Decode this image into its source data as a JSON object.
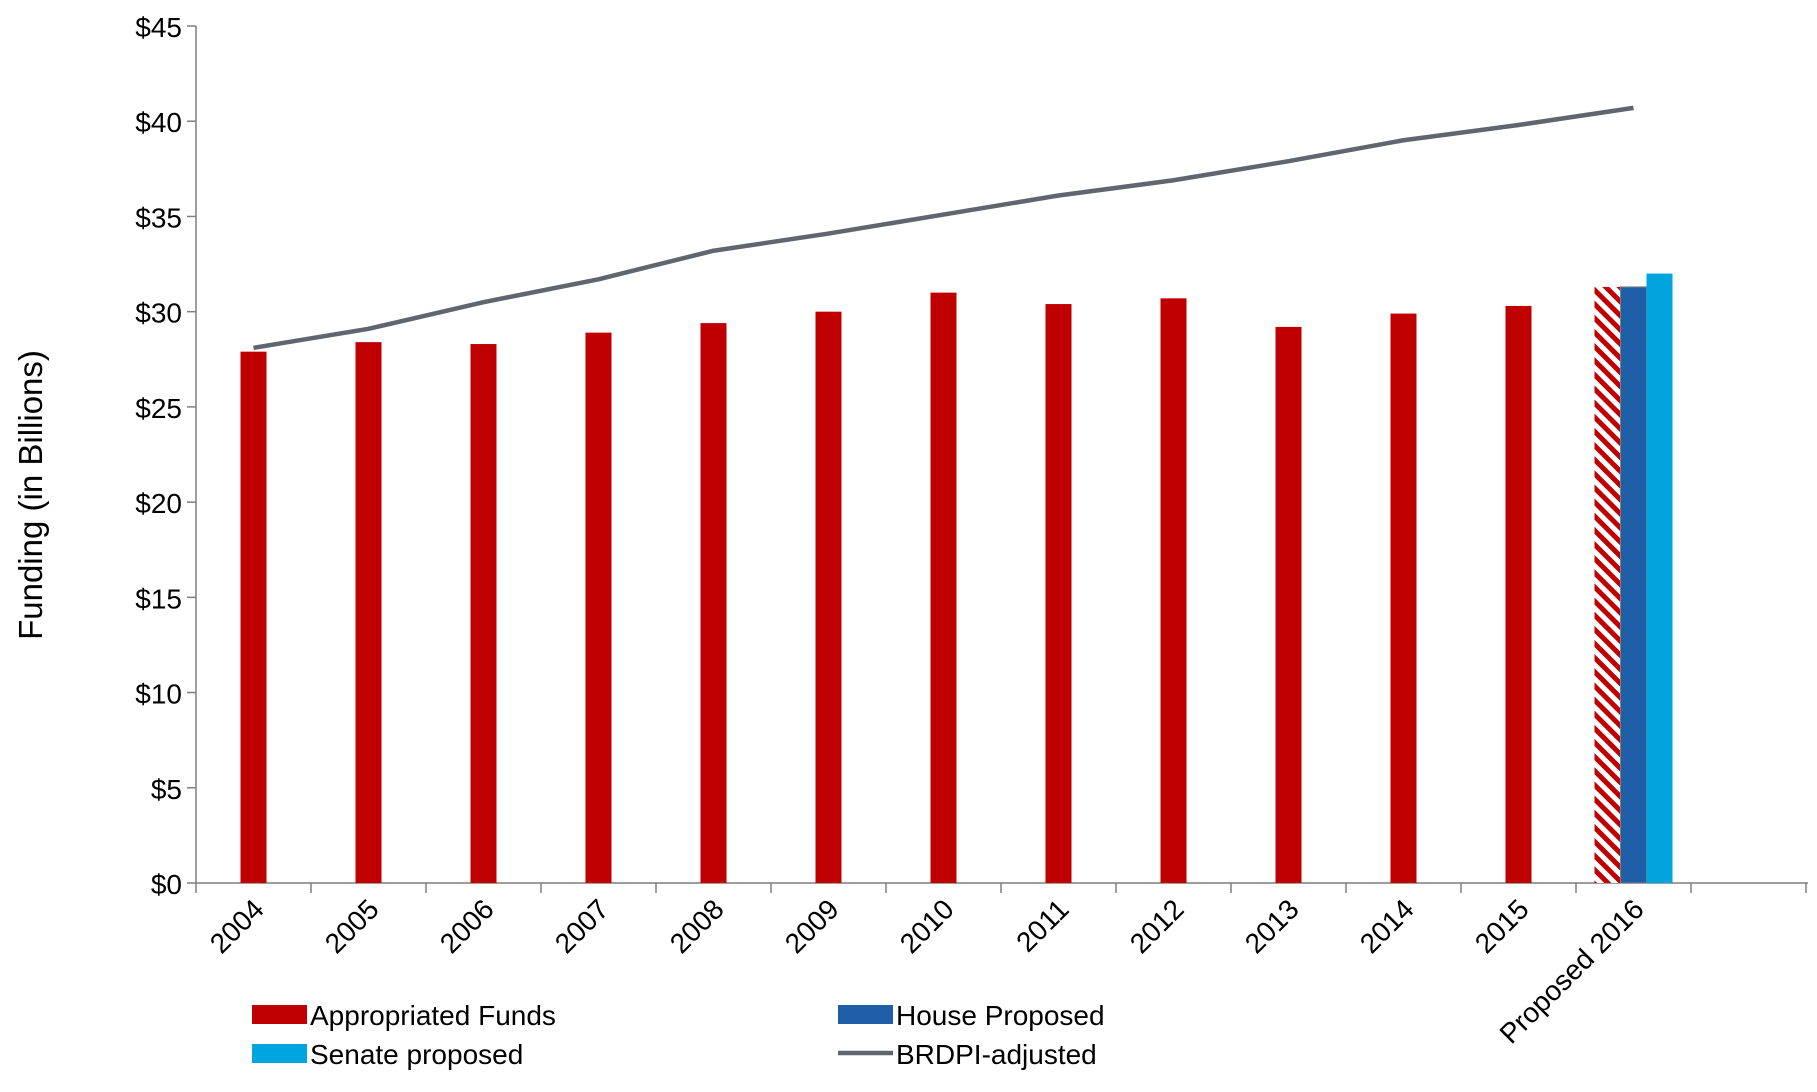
{
  "chart_data": {
    "type": "bar",
    "title": "",
    "xlabel": "",
    "ylabel": "Funding (in Billions)",
    "ylim": [
      0,
      45
    ],
    "y_ticks": [
      0,
      5,
      10,
      15,
      20,
      25,
      30,
      35,
      40,
      45
    ],
    "y_tick_labels": [
      "$0",
      "$5",
      "$10",
      "$15",
      "$20",
      "$25",
      "$30",
      "$35",
      "$40",
      "$45"
    ],
    "categories": [
      "2004",
      "2005",
      "2006",
      "2007",
      "2008",
      "2009",
      "2010",
      "2011",
      "2012",
      "2013",
      "2014",
      "2015",
      "Proposed 2016"
    ],
    "grid": false,
    "legend_position": "bottom",
    "series": [
      {
        "name": "Appropriated Funds",
        "kind": "bar",
        "color": "#C00000",
        "values": [
          27.9,
          28.4,
          28.3,
          28.9,
          29.4,
          30.0,
          31.0,
          30.4,
          30.7,
          29.2,
          29.9,
          30.3,
          31.3
        ],
        "hatched_categories": [
          "Proposed 2016"
        ]
      },
      {
        "name": "House Proposed",
        "kind": "bar",
        "color": "#1F5FA8",
        "values": [
          null,
          null,
          null,
          null,
          null,
          null,
          null,
          null,
          null,
          null,
          null,
          null,
          31.3
        ]
      },
      {
        "name": "Senate proposed",
        "kind": "bar",
        "color": "#00A5E0",
        "values": [
          null,
          null,
          null,
          null,
          null,
          null,
          null,
          null,
          null,
          null,
          null,
          null,
          32.0
        ]
      },
      {
        "name": "BRDPI-adjusted",
        "kind": "line",
        "color": "#5F6670",
        "values": [
          28.1,
          29.1,
          30.5,
          31.7,
          33.2,
          34.1,
          35.1,
          36.1,
          36.9,
          37.9,
          39.0,
          39.8,
          40.7
        ]
      }
    ]
  }
}
